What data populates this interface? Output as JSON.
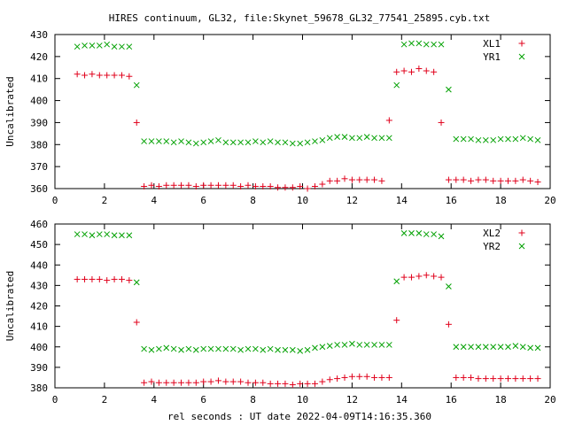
{
  "chart_title": "HIRES continuum, GL32, file:Skynet_59678_GL32_77541_25895.cyb.txt",
  "xlabel": "rel seconds : UT date 2022-04-09T14:16:35.360",
  "chart_data": [
    {
      "type": "scatter",
      "title": "HIRES continuum, GL32, file:Skynet_59678_GL32_77541_25895.cyb.txt",
      "xlabel": "",
      "ylabel": "Uncalibrated",
      "xlim": [
        0,
        20
      ],
      "ylim": [
        360,
        430
      ],
      "xticks": [
        0,
        2,
        4,
        6,
        8,
        10,
        12,
        14,
        16,
        18,
        20
      ],
      "yticks": [
        360,
        370,
        380,
        390,
        400,
        410,
        420,
        430
      ],
      "grid": false,
      "legend_position": "top-right",
      "series": [
        {
          "name": "XL1",
          "marker": "plus",
          "color": "#e0001b",
          "x": [
            0.9,
            1.2,
            1.5,
            1.8,
            2.1,
            2.4,
            2.7,
            3.0,
            3.3,
            3.6,
            3.9,
            4.2,
            4.5,
            4.8,
            5.1,
            5.4,
            5.7,
            6.0,
            6.3,
            6.6,
            6.9,
            7.2,
            7.5,
            7.8,
            8.1,
            8.4,
            8.7,
            9.0,
            9.3,
            9.6,
            9.9,
            10.2,
            10.5,
            10.8,
            11.1,
            11.4,
            11.7,
            12.0,
            12.3,
            12.6,
            12.9,
            13.2,
            13.5,
            13.8,
            14.1,
            14.4,
            14.7,
            15.0,
            15.3,
            15.6,
            15.9,
            16.2,
            16.5,
            16.8,
            17.1,
            17.4,
            17.7,
            18.0,
            18.3,
            18.6,
            18.9,
            19.2,
            19.5
          ],
          "y": [
            412,
            411.5,
            412,
            411.5,
            411.5,
            411.5,
            411.5,
            411,
            390,
            361,
            361.5,
            361,
            361.5,
            361.5,
            361.5,
            361.5,
            361,
            361.5,
            361.5,
            361.5,
            361.5,
            361.5,
            361,
            361.5,
            361,
            361,
            361,
            360.5,
            360.5,
            360.5,
            361,
            360,
            361,
            362,
            363.5,
            363.5,
            364.5,
            364,
            364,
            364,
            364,
            363.5,
            391,
            413,
            413.5,
            413,
            414.5,
            413.5,
            413,
            390,
            364,
            364,
            364,
            363.5,
            364,
            364,
            363.5,
            363.5,
            363.5,
            363.5,
            364,
            363.5,
            363
          ]
        },
        {
          "name": "YR1",
          "marker": "x",
          "color": "#00a000",
          "x": [
            0.9,
            1.2,
            1.5,
            1.8,
            2.1,
            2.4,
            2.7,
            3.0,
            3.3,
            3.6,
            3.9,
            4.2,
            4.5,
            4.8,
            5.1,
            5.4,
            5.7,
            6.0,
            6.3,
            6.6,
            6.9,
            7.2,
            7.5,
            7.8,
            8.1,
            8.4,
            8.7,
            9.0,
            9.3,
            9.6,
            9.9,
            10.2,
            10.5,
            10.8,
            11.1,
            11.4,
            11.7,
            12.0,
            12.3,
            12.6,
            12.9,
            13.2,
            13.5,
            13.8,
            14.1,
            14.4,
            14.7,
            15.0,
            15.3,
            15.6,
            15.9,
            16.2,
            16.5,
            16.8,
            17.1,
            17.4,
            17.7,
            18.0,
            18.3,
            18.6,
            18.9,
            19.2,
            19.5
          ],
          "y": [
            424.5,
            425,
            425,
            425,
            425.5,
            424.5,
            424.5,
            424.5,
            407,
            381.5,
            381.5,
            381.5,
            381.5,
            381,
            381.5,
            381,
            380.5,
            381,
            381.5,
            382,
            381,
            381,
            381,
            381,
            381.5,
            381,
            381.5,
            381,
            381,
            380.5,
            380.5,
            381,
            381.5,
            382,
            383,
            383.5,
            383.5,
            383,
            383,
            383.5,
            383,
            383,
            383,
            407,
            425.5,
            426,
            426,
            425.5,
            425.5,
            425.5,
            405,
            382.5,
            382.5,
            382.5,
            382,
            382,
            382,
            382.5,
            382.5,
            382.5,
            383,
            382.5,
            382
          ]
        }
      ]
    },
    {
      "type": "scatter",
      "title": "",
      "xlabel": "rel seconds : UT date 2022-04-09T14:16:35.360",
      "ylabel": "Uncalibrated",
      "xlim": [
        0,
        20
      ],
      "ylim": [
        380,
        460
      ],
      "xticks": [
        0,
        2,
        4,
        6,
        8,
        10,
        12,
        14,
        16,
        18,
        20
      ],
      "yticks": [
        380,
        390,
        400,
        410,
        420,
        430,
        440,
        450,
        460
      ],
      "grid": false,
      "legend_position": "top-right",
      "series": [
        {
          "name": "XL2",
          "marker": "plus",
          "color": "#e0001b",
          "x": [
            0.9,
            1.2,
            1.5,
            1.8,
            2.1,
            2.4,
            2.7,
            3.0,
            3.3,
            3.6,
            3.9,
            4.2,
            4.5,
            4.8,
            5.1,
            5.4,
            5.7,
            6.0,
            6.3,
            6.6,
            6.9,
            7.2,
            7.5,
            7.8,
            8.1,
            8.4,
            8.7,
            9.0,
            9.3,
            9.6,
            9.9,
            10.2,
            10.5,
            10.8,
            11.1,
            11.4,
            11.7,
            12.0,
            12.3,
            12.6,
            12.9,
            13.2,
            13.5,
            13.8,
            14.1,
            14.4,
            14.7,
            15.0,
            15.3,
            15.6,
            15.9,
            16.2,
            16.5,
            16.8,
            17.1,
            17.4,
            17.7,
            18.0,
            18.3,
            18.6,
            18.9,
            19.2,
            19.5
          ],
          "y": [
            433,
            433,
            433,
            433,
            432.5,
            433,
            433,
            432.5,
            412,
            382.5,
            383,
            382.5,
            382.5,
            382.5,
            382.5,
            382.5,
            382.5,
            383,
            383,
            383.5,
            383,
            383,
            383,
            382.5,
            382.5,
            382.5,
            382,
            382,
            382,
            381.5,
            382,
            382,
            382,
            383,
            384,
            384.5,
            385,
            385.5,
            385.5,
            385.5,
            385,
            385,
            385,
            413,
            434,
            434,
            434.5,
            435,
            434.5,
            434,
            411,
            385,
            385,
            385,
            384.5,
            384.5,
            384.5,
            384.5,
            384.5,
            384.5,
            384.5,
            384.5,
            384.5
          ]
        },
        {
          "name": "YR2",
          "marker": "x",
          "color": "#00a000",
          "x": [
            0.9,
            1.2,
            1.5,
            1.8,
            2.1,
            2.4,
            2.7,
            3.0,
            3.3,
            3.6,
            3.9,
            4.2,
            4.5,
            4.8,
            5.1,
            5.4,
            5.7,
            6.0,
            6.3,
            6.6,
            6.9,
            7.2,
            7.5,
            7.8,
            8.1,
            8.4,
            8.7,
            9.0,
            9.3,
            9.6,
            9.9,
            10.2,
            10.5,
            10.8,
            11.1,
            11.4,
            11.7,
            12.0,
            12.3,
            12.6,
            12.9,
            13.2,
            13.5,
            13.8,
            14.1,
            14.4,
            14.7,
            15.0,
            15.3,
            15.6,
            15.9,
            16.2,
            16.5,
            16.8,
            17.1,
            17.4,
            17.7,
            18.0,
            18.3,
            18.6,
            18.9,
            19.2,
            19.5
          ],
          "y": [
            455,
            455,
            454.5,
            455,
            455,
            454.5,
            454.5,
            454.5,
            431.5,
            399,
            398.5,
            399,
            399.5,
            399,
            398.5,
            399,
            398.5,
            399,
            399,
            399,
            399,
            399,
            398.5,
            399,
            399,
            398.5,
            399,
            398.5,
            398.5,
            398.5,
            398,
            398.5,
            399.5,
            400,
            400.5,
            401,
            401,
            401.5,
            401,
            401,
            401,
            401,
            401,
            432,
            455.5,
            455.5,
            455.5,
            455,
            455,
            454,
            429.5,
            400,
            400,
            400,
            400,
            400,
            400,
            400,
            400,
            400.5,
            400,
            399.5,
            399.5
          ]
        }
      ]
    }
  ]
}
